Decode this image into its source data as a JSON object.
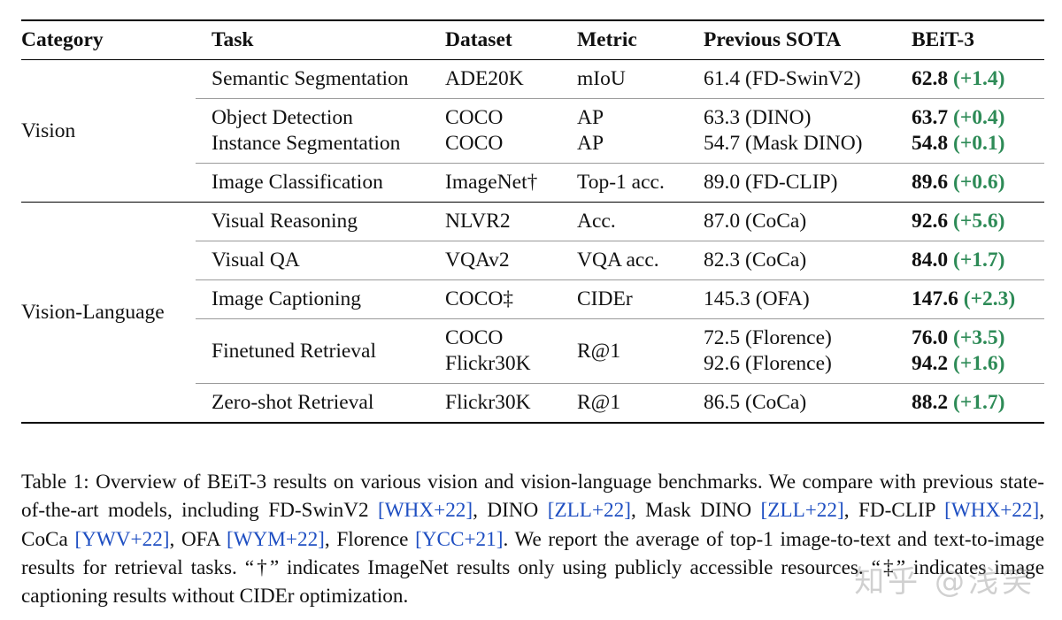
{
  "table": {
    "headers": [
      "Category",
      "Task",
      "Dataset",
      "Metric",
      "Previous SOTA",
      "BEiT-3"
    ],
    "categories": {
      "vision": "Vision",
      "vision_language": "Vision-Language"
    },
    "rows": [
      {
        "task": "Semantic Segmentation",
        "dataset": [
          "ADE20K"
        ],
        "metric": "mIoU",
        "prev": [
          "61.4 (FD-SwinV2)"
        ],
        "best": [
          "62.8"
        ],
        "delta": [
          "(+1.4)"
        ]
      },
      {
        "task": [
          "Object Detection",
          "Instance Segmentation"
        ],
        "dataset": [
          "COCO",
          "COCO"
        ],
        "metric": [
          "AP",
          "AP"
        ],
        "prev": [
          "63.3 (DINO)",
          "54.7 (Mask DINO)"
        ],
        "best": [
          "63.7",
          "54.8"
        ],
        "delta": [
          "(+0.4)",
          "(+0.1)"
        ]
      },
      {
        "task": "Image Classification",
        "dataset": [
          "ImageNet†"
        ],
        "metric": "Top-1 acc.",
        "prev": [
          "89.0 (FD-CLIP)"
        ],
        "best": [
          "89.6"
        ],
        "delta": [
          "(+0.6)"
        ]
      },
      {
        "task": "Visual Reasoning",
        "dataset": [
          "NLVR2"
        ],
        "metric": "Acc.",
        "prev": [
          "87.0 (CoCa)"
        ],
        "best": [
          "92.6"
        ],
        "delta": [
          "(+5.6)"
        ]
      },
      {
        "task": "Visual QA",
        "dataset": [
          "VQAv2"
        ],
        "metric": "VQA acc.",
        "prev": [
          "82.3 (CoCa)"
        ],
        "best": [
          "84.0"
        ],
        "delta": [
          "(+1.7)"
        ]
      },
      {
        "task": "Image Captioning",
        "dataset": [
          "COCO‡"
        ],
        "metric": "CIDEr",
        "prev": [
          "145.3 (OFA)"
        ],
        "best": [
          "147.6"
        ],
        "delta": [
          "(+2.3)"
        ]
      },
      {
        "task": "Finetuned Retrieval",
        "dataset": [
          "COCO",
          "Flickr30K"
        ],
        "metric": "R@1",
        "prev": [
          "72.5 (Florence)",
          "92.6 (Florence)"
        ],
        "best": [
          "76.0",
          "94.2"
        ],
        "delta": [
          "(+3.5)",
          "(+1.6)"
        ]
      },
      {
        "task": "Zero-shot Retrieval",
        "dataset": [
          "Flickr30K"
        ],
        "metric": "R@1",
        "prev": [
          "86.5 (CoCa)"
        ],
        "best": [
          "88.2"
        ],
        "delta": [
          "(+1.7)"
        ]
      }
    ]
  },
  "caption": {
    "label": "Table 1: Overview of ",
    "model": "BEiT-3",
    "t1": " results on various vision and vision-language benchmarks. We compare with previous state-of-the-art models, including FD-SwinV2 ",
    "c1": "[WHX+22]",
    "t2": ", DINO ",
    "c2": "[ZLL+22]",
    "t3": ", Mask DINO ",
    "c3": "[ZLL+22]",
    "t4": ", FD-CLIP ",
    "c4": "[WHX+22]",
    "t5": ", CoCa ",
    "c5": "[YWV+22]",
    "t6": ", OFA ",
    "c6": "[WYM+22]",
    "t7": ", Florence ",
    "c7": "[YCC+21]",
    "t8": ". We report the average of top-1 image-to-text and text-to-image results for retrieval tasks. “†” indicates ImageNet results only using publicly accessible resources. “‡” indicates image captioning results without CIDEr optimization."
  },
  "watermark": "知乎 @浅笑"
}
